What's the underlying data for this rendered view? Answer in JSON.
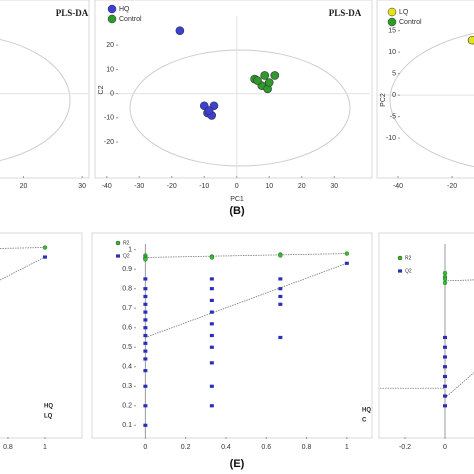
{
  "chart_data": [
    {
      "type": "scatter",
      "title": "PLS-DA",
      "xlim": [
        16,
        31
      ],
      "ylim": [
        -34,
        37
      ],
      "xticks": [
        20,
        30
      ],
      "yticks": [],
      "series": []
    },
    {
      "type": "scatter",
      "title": "PLS-DA",
      "xlabel": "PC1",
      "ylabel": "C2",
      "xlim": [
        -43,
        41
      ],
      "ylim": [
        -34,
        37
      ],
      "xticks": [
        -40,
        -30,
        -20,
        -10,
        0,
        10,
        20,
        30
      ],
      "yticks": [
        -20,
        -10,
        0,
        10,
        20
      ],
      "series": [
        {
          "name": "HQ",
          "color": "#3d3fd6",
          "marker": "circle",
          "x": [
            -17.5,
            -10,
            -7,
            -9,
            -7.7,
            -8.5
          ],
          "values": [
            26,
            -5,
            -5,
            -8,
            -9,
            -7
          ]
        },
        {
          "name": "Control",
          "color": "#2f9a2a",
          "marker": "circle",
          "x": [
            5.5,
            8.6,
            11.7,
            7.7,
            9.5,
            10,
            6.4
          ],
          "values": [
            6,
            7.5,
            7.5,
            3.3,
            2,
            4.6,
            5.4
          ]
        }
      ]
    },
    {
      "type": "scatter",
      "ylabel": "PC2",
      "xlim": [
        -47.4,
        -11.9
      ],
      "ylim": [
        -18.8,
        21.2
      ],
      "xticks": [
        -40,
        -20
      ],
      "yticks": [
        15,
        10,
        5,
        0,
        -5,
        -10
      ],
      "series": [
        {
          "name": "LQ",
          "color": "#e6e21e",
          "marker": "circle",
          "x": [
            -12.6
          ],
          "values": [
            12.8
          ]
        },
        {
          "name": "Control",
          "color": "#2f9a2a",
          "marker": "circle",
          "x": [],
          "values": []
        }
      ]
    },
    {
      "type": "scatter",
      "xlim": [
        0.757,
        1.2
      ],
      "ylim": [
        0,
        1.05
      ],
      "xticks": [
        0.8,
        1
      ],
      "yticks": [],
      "annotations": [
        "HQ",
        "LQ"
      ],
      "series": [
        {
          "color": "#777777",
          "marker": "line",
          "x": [
            0.757,
            1
          ],
          "values": [
            0.985,
            0.99
          ]
        },
        {
          "color": "#777777",
          "marker": "line",
          "x": [
            0.757,
            1
          ],
          "values": [
            0.82,
            0.94
          ]
        },
        {
          "color": "#2fc22a",
          "marker": "circle",
          "x": [
            1
          ],
          "values": [
            0.99
          ]
        },
        {
          "color": "#2b2fb8",
          "marker": "square",
          "x": [
            1
          ],
          "values": [
            0.94
          ]
        }
      ]
    },
    {
      "type": "scatter",
      "xlim": [
        -0.26,
        1.115
      ],
      "ylim": [
        0.04,
        1.07
      ],
      "xticks": [
        0,
        0.2,
        0.4,
        0.6,
        0.8,
        1
      ],
      "yticks": [
        1,
        0.9,
        0.8,
        0.7,
        0.6,
        0.5,
        0.4,
        0.3,
        0.2,
        0.1
      ],
      "annotations": [
        "HQ",
        "C"
      ],
      "series": [
        {
          "color": "#777777",
          "marker": "line",
          "x": [
            0,
            1
          ],
          "values": [
            0.96,
            0.98
          ]
        },
        {
          "color": "#777777",
          "marker": "line",
          "x": [
            0,
            1
          ],
          "values": [
            0.55,
            0.93
          ]
        },
        {
          "name": "R2",
          "color": "#2fc22a",
          "marker": "circle",
          "x": [
            0,
            0,
            0,
            0,
            0.33,
            0.33,
            0.67,
            0.67,
            1
          ],
          "values": [
            0.97,
            0.96,
            0.955,
            0.95,
            0.965,
            0.96,
            0.975,
            0.97,
            0.98
          ]
        },
        {
          "name": "Q2",
          "color": "#2b2fb8",
          "marker": "square",
          "x": [
            0,
            0,
            0,
            0,
            0,
            0,
            0,
            0,
            0,
            0,
            0,
            0,
            0,
            0,
            0,
            0.33,
            0.33,
            0.33,
            0.33,
            0.33,
            0.33,
            0.33,
            0.33,
            0.33,
            0.33,
            0.67,
            0.67,
            0.67,
            0.67,
            0.67,
            1
          ],
          "values": [
            0.85,
            0.8,
            0.76,
            0.72,
            0.68,
            0.64,
            0.6,
            0.56,
            0.52,
            0.48,
            0.44,
            0.38,
            0.3,
            0.2,
            0.1,
            0.85,
            0.8,
            0.74,
            0.68,
            0.62,
            0.56,
            0.5,
            0.42,
            0.3,
            0.2,
            0.85,
            0.8,
            0.76,
            0.72,
            0.55,
            0.93
          ]
        }
      ]
    },
    {
      "type": "scatter",
      "xlim": [
        -0.325,
        0.145
      ],
      "ylim": [
        0.04,
        1.07
      ],
      "xticks": [
        -0.2,
        0
      ],
      "yticks": [],
      "series": [
        {
          "color": "#777777",
          "marker": "line",
          "x": [
            0,
            0.145
          ],
          "values": [
            0.84,
            0.845
          ]
        },
        {
          "color": "#777777",
          "marker": "line",
          "x": [
            -0.325,
            0
          ],
          "values": [
            0.29,
            0.29
          ]
        },
        {
          "color": "#777777",
          "marker": "line",
          "x": [
            0,
            0.145
          ],
          "values": [
            0.24,
            0.37
          ]
        },
        {
          "name": "R2",
          "color": "#2fc22a",
          "marker": "circle",
          "x": [
            0,
            0,
            0,
            0
          ],
          "values": [
            0.88,
            0.86,
            0.85,
            0.83
          ]
        },
        {
          "name": "Q2",
          "color": "#2b2fb8",
          "marker": "square",
          "x": [
            0,
            0,
            0,
            0,
            0,
            0,
            0,
            0
          ],
          "values": [
            0.55,
            0.5,
            0.45,
            0.4,
            0.35,
            0.3,
            0.25,
            0.2
          ]
        }
      ]
    }
  ],
  "panel_labels": [
    "(B)",
    "(E)"
  ]
}
